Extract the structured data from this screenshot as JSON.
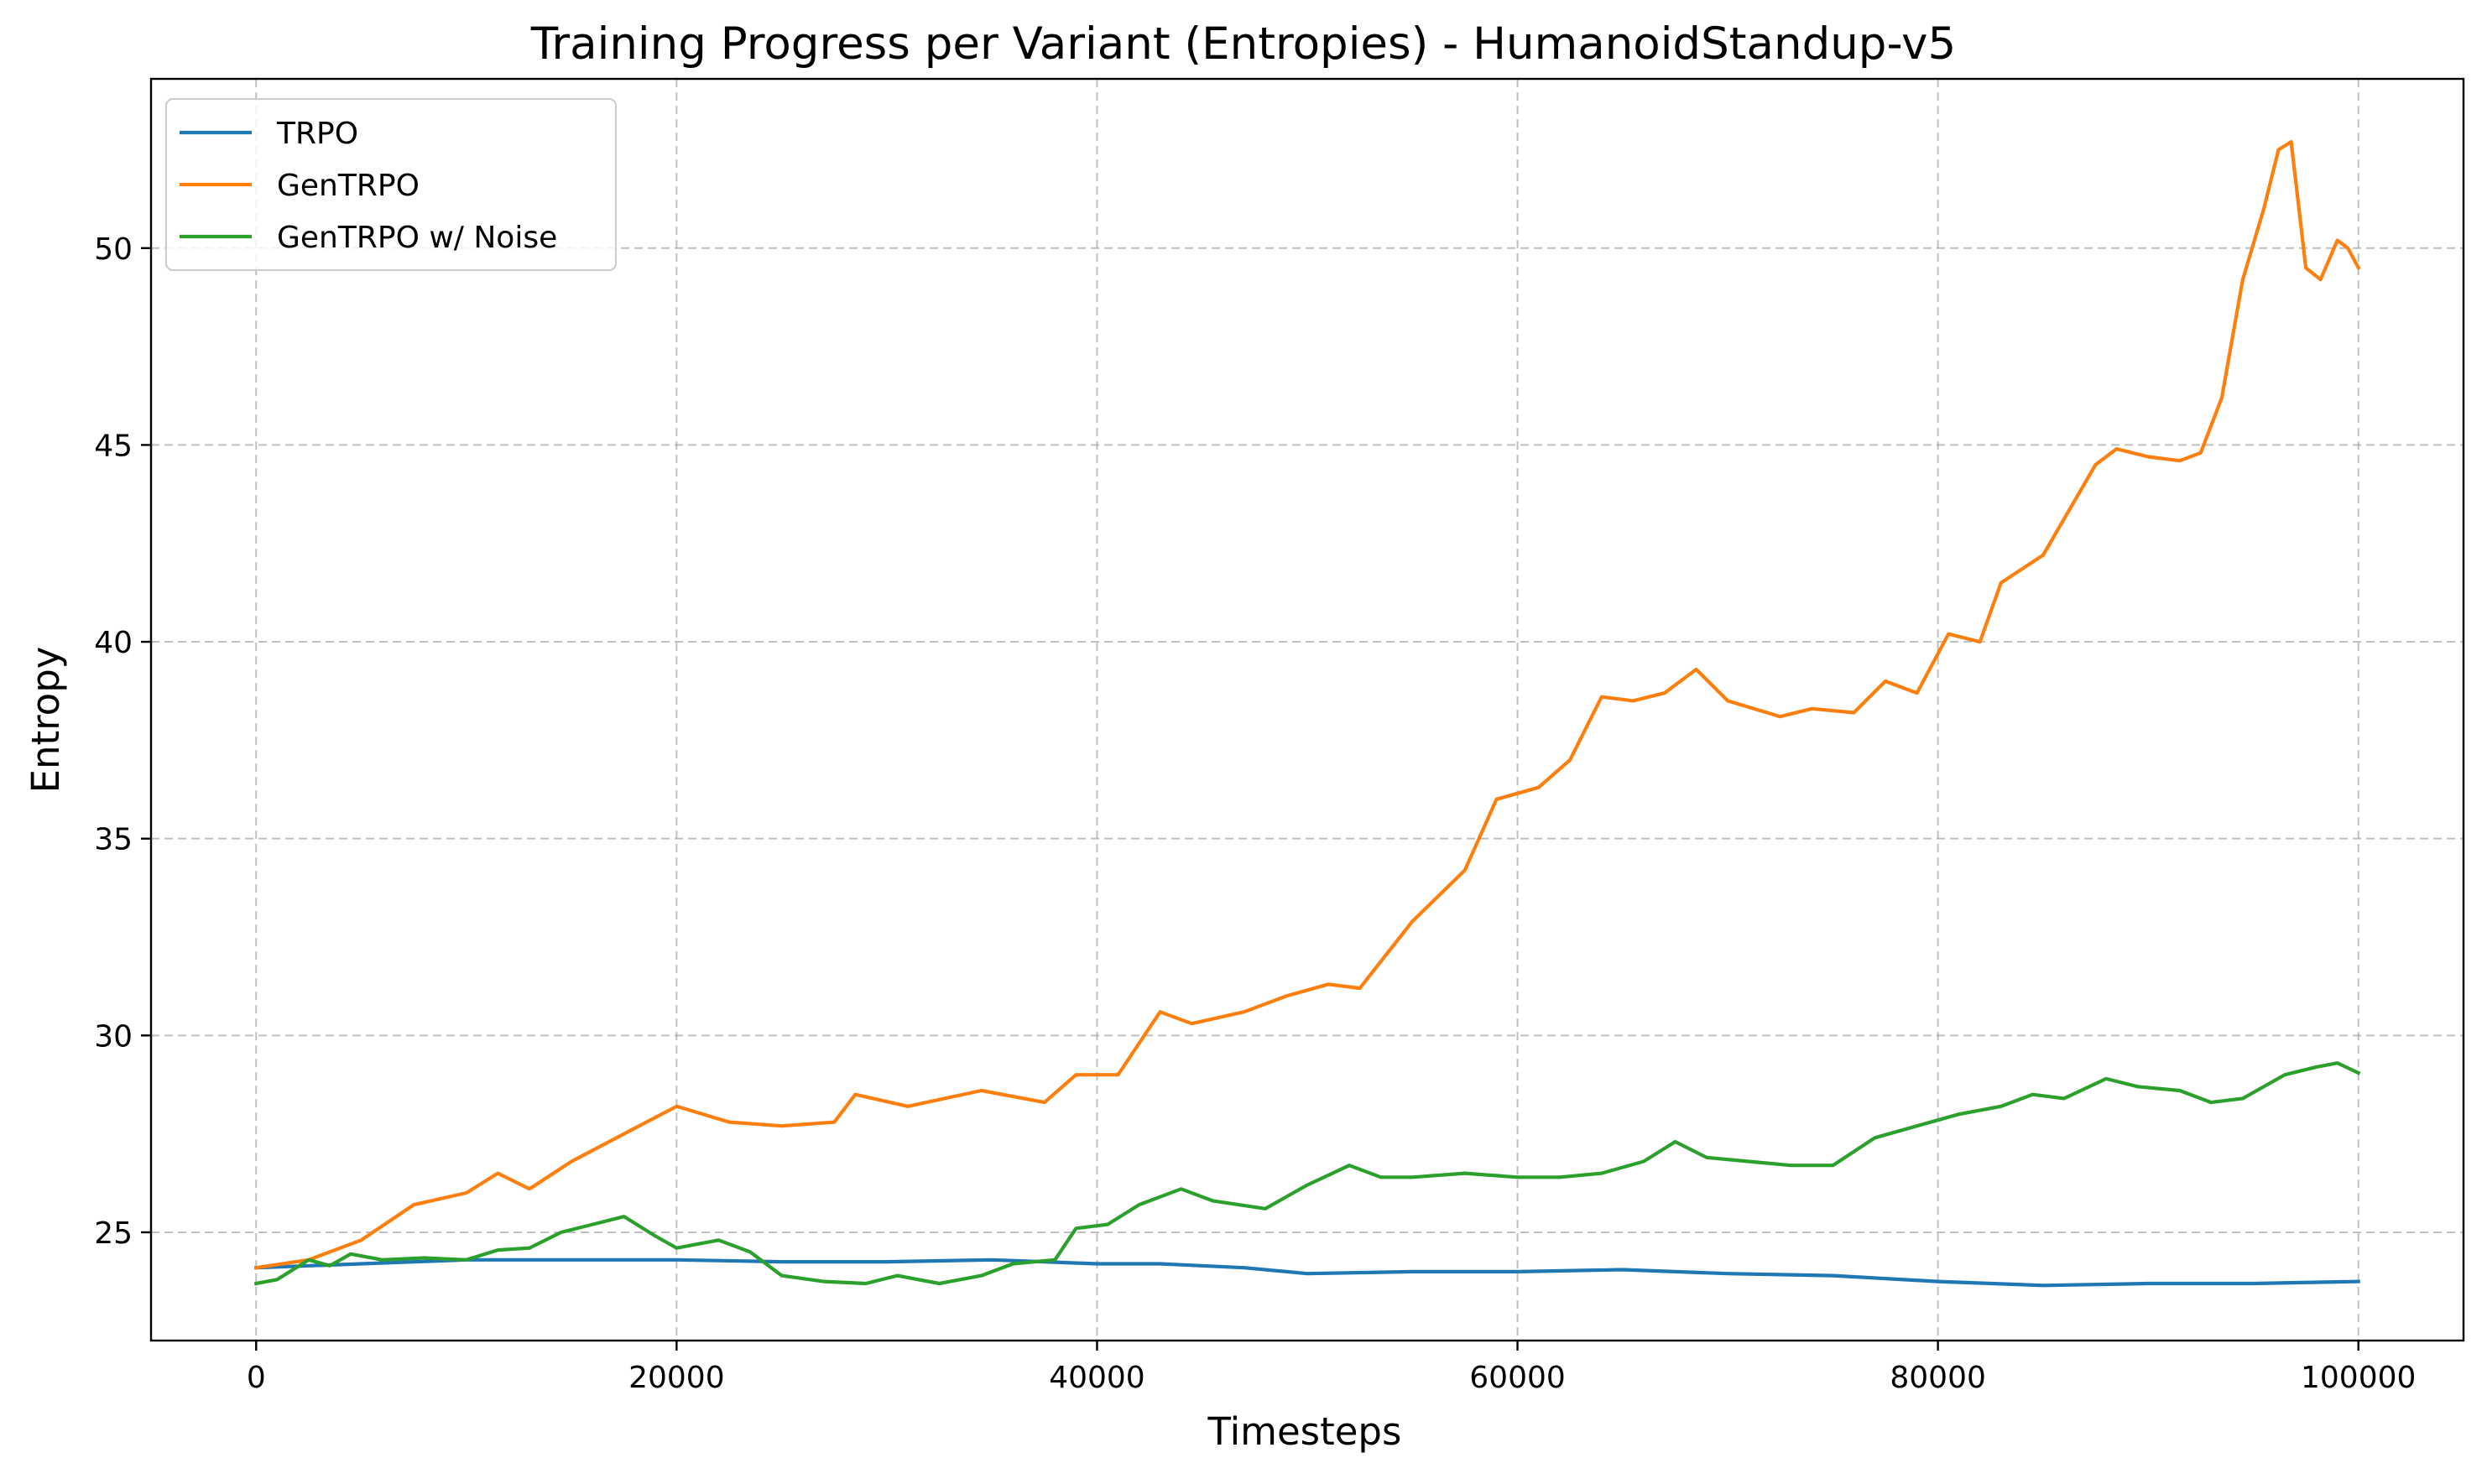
{
  "chart_data": {
    "type": "line",
    "title": "Training Progress per Variant (Entropies) - HumanoidStandup-v5",
    "xlabel": "Timesteps",
    "ylabel": "Entropy",
    "xlim": [
      -5000,
      105000
    ],
    "ylim": [
      22.25,
      54.3
    ],
    "x_ticks": [
      0,
      20000,
      40000,
      60000,
      80000,
      100000
    ],
    "y_ticks": [
      25,
      30,
      35,
      40,
      45,
      50
    ],
    "grid": true,
    "legend_position": "upper-left",
    "series": [
      {
        "name": "TRPO",
        "color": "#1f77b4",
        "points": [
          [
            0,
            24.1
          ],
          [
            5000,
            24.2
          ],
          [
            10000,
            24.3
          ],
          [
            15000,
            24.3
          ],
          [
            20000,
            24.3
          ],
          [
            25000,
            24.25
          ],
          [
            30000,
            24.25
          ],
          [
            35000,
            24.3
          ],
          [
            40000,
            24.2
          ],
          [
            43000,
            24.2
          ],
          [
            47000,
            24.1
          ],
          [
            50000,
            23.95
          ],
          [
            55000,
            24.0
          ],
          [
            60000,
            24.0
          ],
          [
            65000,
            24.05
          ],
          [
            70000,
            23.95
          ],
          [
            75000,
            23.9
          ],
          [
            80000,
            23.75
          ],
          [
            85000,
            23.65
          ],
          [
            90000,
            23.7
          ],
          [
            95000,
            23.7
          ],
          [
            100000,
            23.75
          ]
        ]
      },
      {
        "name": "GenTRPO",
        "color": "#ff7f0e",
        "points": [
          [
            0,
            24.1
          ],
          [
            2500,
            24.3
          ],
          [
            5000,
            24.8
          ],
          [
            7500,
            25.7
          ],
          [
            10000,
            26.0
          ],
          [
            11500,
            26.5
          ],
          [
            13000,
            26.1
          ],
          [
            15000,
            26.8
          ],
          [
            17500,
            27.5
          ],
          [
            20000,
            28.2
          ],
          [
            22500,
            27.8
          ],
          [
            25000,
            27.7
          ],
          [
            27500,
            27.8
          ],
          [
            28500,
            28.5
          ],
          [
            31000,
            28.2
          ],
          [
            34500,
            28.6
          ],
          [
            37500,
            28.3
          ],
          [
            39000,
            29.0
          ],
          [
            41000,
            29.0
          ],
          [
            43000,
            30.6
          ],
          [
            44500,
            30.3
          ],
          [
            47000,
            30.6
          ],
          [
            49000,
            31.0
          ],
          [
            51000,
            31.3
          ],
          [
            52500,
            31.2
          ],
          [
            55000,
            32.9
          ],
          [
            57500,
            34.2
          ],
          [
            59000,
            36.0
          ],
          [
            61000,
            36.3
          ],
          [
            62500,
            37.0
          ],
          [
            64000,
            38.6
          ],
          [
            65500,
            38.5
          ],
          [
            67000,
            38.7
          ],
          [
            68500,
            39.3
          ],
          [
            70000,
            38.5
          ],
          [
            72500,
            38.1
          ],
          [
            74000,
            38.3
          ],
          [
            76000,
            38.2
          ],
          [
            77500,
            39.0
          ],
          [
            79000,
            38.7
          ],
          [
            80500,
            40.2
          ],
          [
            82000,
            40.0
          ],
          [
            83000,
            41.5
          ],
          [
            85000,
            42.2
          ],
          [
            87500,
            44.5
          ],
          [
            88500,
            44.9
          ],
          [
            90000,
            44.7
          ],
          [
            91500,
            44.6
          ],
          [
            92500,
            44.8
          ],
          [
            93500,
            46.2
          ],
          [
            94500,
            49.2
          ],
          [
            95500,
            51.0
          ],
          [
            96200,
            52.5
          ],
          [
            96800,
            52.7
          ],
          [
            97500,
            49.5
          ],
          [
            98200,
            49.2
          ],
          [
            99000,
            50.2
          ],
          [
            99500,
            50.0
          ],
          [
            100000,
            49.5
          ]
        ]
      },
      {
        "name": "GenTRPO w/ Noise",
        "color": "#2ca02c",
        "points": [
          [
            0,
            23.7
          ],
          [
            1000,
            23.8
          ],
          [
            2500,
            24.3
          ],
          [
            3500,
            24.15
          ],
          [
            4500,
            24.45
          ],
          [
            6000,
            24.3
          ],
          [
            8000,
            24.35
          ],
          [
            10000,
            24.3
          ],
          [
            11500,
            24.55
          ],
          [
            13000,
            24.6
          ],
          [
            14500,
            25.0
          ],
          [
            16000,
            25.2
          ],
          [
            17500,
            25.4
          ],
          [
            19000,
            24.9
          ],
          [
            20000,
            24.6
          ],
          [
            22000,
            24.8
          ],
          [
            23500,
            24.5
          ],
          [
            25000,
            23.9
          ],
          [
            27000,
            23.75
          ],
          [
            29000,
            23.7
          ],
          [
            30500,
            23.9
          ],
          [
            32500,
            23.7
          ],
          [
            34500,
            23.9
          ],
          [
            36000,
            24.2
          ],
          [
            38000,
            24.3
          ],
          [
            39000,
            25.1
          ],
          [
            40500,
            25.2
          ],
          [
            42000,
            25.7
          ],
          [
            44000,
            26.1
          ],
          [
            45500,
            25.8
          ],
          [
            48000,
            25.6
          ],
          [
            50000,
            26.2
          ],
          [
            52000,
            26.7
          ],
          [
            53500,
            26.4
          ],
          [
            55000,
            26.4
          ],
          [
            57500,
            26.5
          ],
          [
            60000,
            26.4
          ],
          [
            62000,
            26.4
          ],
          [
            64000,
            26.5
          ],
          [
            66000,
            26.8
          ],
          [
            67500,
            27.3
          ],
          [
            69000,
            26.9
          ],
          [
            71000,
            26.8
          ],
          [
            73000,
            26.7
          ],
          [
            75000,
            26.7
          ],
          [
            77000,
            27.4
          ],
          [
            79000,
            27.7
          ],
          [
            81000,
            28.0
          ],
          [
            83000,
            28.2
          ],
          [
            84500,
            28.5
          ],
          [
            86000,
            28.4
          ],
          [
            88000,
            28.9
          ],
          [
            89500,
            28.7
          ],
          [
            91500,
            28.6
          ],
          [
            93000,
            28.3
          ],
          [
            94500,
            28.4
          ],
          [
            96500,
            29.0
          ],
          [
            98000,
            29.2
          ],
          [
            99000,
            29.3
          ],
          [
            100000,
            29.05
          ]
        ]
      }
    ]
  }
}
